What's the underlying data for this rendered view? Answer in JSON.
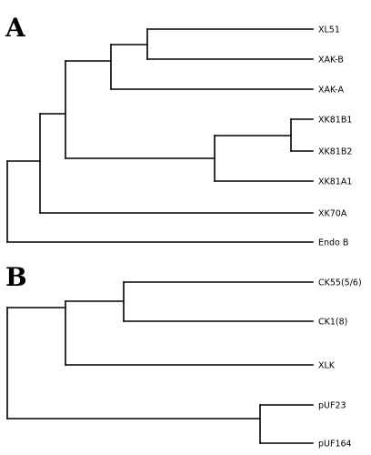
{
  "panels": [
    {
      "letter": "A",
      "leaves": [
        "XL51",
        "XAK-B",
        "XAK-A",
        "XK81B1",
        "XK81B2",
        "XK81A1",
        "XK70A",
        "Endo B"
      ]
    },
    {
      "letter": "B",
      "leaves": [
        "CK55(5/6)",
        "CK1(8)",
        "XLK",
        "pUF23",
        "pUF164"
      ]
    }
  ]
}
